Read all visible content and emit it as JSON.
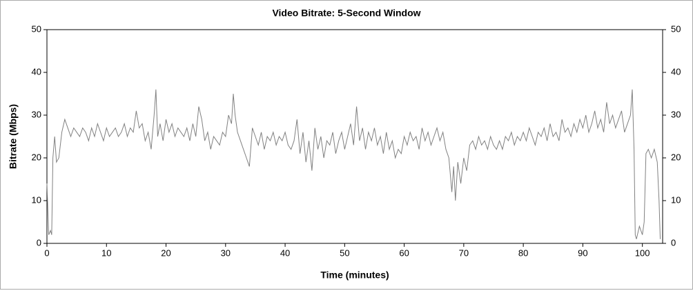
{
  "chart_data": {
    "type": "line",
    "title": "Video Bitrate: 5-Second Window",
    "x_label": "Time (minutes)",
    "y_label": "Bitrate (Mbps)",
    "xlim": [
      0,
      103.4
    ],
    "xticks": [
      0,
      10,
      20,
      30,
      40,
      50,
      60,
      70,
      80,
      90,
      100
    ],
    "ylim": [
      0,
      50
    ],
    "yticks": [
      0,
      10,
      20,
      30,
      40,
      50
    ],
    "y2lim": [
      0,
      50
    ],
    "y2ticks": [
      0,
      10,
      20,
      30,
      40,
      50
    ],
    "series": [
      {
        "name": "Bitrate",
        "color": "#808080",
        "x": [
          0,
          0.3,
          0.6,
          0.8,
          1,
          1.3,
          1.6,
          2,
          2.5,
          3,
          3.5,
          4,
          4.5,
          5,
          5.5,
          6,
          6.5,
          7,
          7.5,
          8,
          8.5,
          9,
          9.5,
          10,
          10.5,
          11,
          11.5,
          12,
          12.5,
          13,
          13.5,
          14,
          14.5,
          15,
          15.5,
          16,
          16.5,
          17,
          17.5,
          18,
          18.3,
          18.6,
          19,
          19.5,
          20,
          20.5,
          21,
          21.5,
          22,
          22.5,
          23,
          23.5,
          24,
          24.5,
          25,
          25.5,
          26,
          26.5,
          27,
          27.5,
          28,
          28.5,
          29,
          29.5,
          30,
          30.5,
          31,
          31.3,
          31.6,
          32,
          32.5,
          33,
          33.5,
          34,
          34.5,
          35,
          35.5,
          36,
          36.5,
          37,
          37.5,
          38,
          38.5,
          39,
          39.5,
          40,
          40.5,
          41,
          41.5,
          42,
          42.5,
          43,
          43.5,
          44,
          44.5,
          45,
          45.5,
          46,
          46.5,
          47,
          47.5,
          48,
          48.5,
          49,
          49.5,
          50,
          50.5,
          51,
          51.5,
          52,
          52.5,
          53,
          53.5,
          54,
          54.5,
          55,
          55.5,
          56,
          56.5,
          57,
          57.5,
          58,
          58.5,
          59,
          59.5,
          60,
          60.5,
          61,
          61.5,
          62,
          62.5,
          63,
          63.5,
          64,
          64.5,
          65,
          65.5,
          66,
          66.5,
          67,
          67.5,
          68,
          68.3,
          68.6,
          69,
          69.5,
          70,
          70.5,
          71,
          71.5,
          72,
          72.5,
          73,
          73.5,
          74,
          74.5,
          75,
          75.5,
          76,
          76.5,
          77,
          77.5,
          78,
          78.5,
          79,
          79.5,
          80,
          80.5,
          81,
          81.5,
          82,
          82.5,
          83,
          83.5,
          84,
          84.5,
          85,
          85.5,
          86,
          86.5,
          87,
          87.5,
          88,
          88.5,
          89,
          89.5,
          90,
          90.5,
          91,
          91.5,
          92,
          92.5,
          93,
          93.5,
          94,
          94.5,
          95,
          95.5,
          96,
          96.5,
          97,
          97.5,
          98,
          98.3,
          98.6,
          98.8,
          99,
          99.5,
          100,
          100.3,
          100.6,
          101,
          101.5,
          102,
          102.5,
          102.8,
          103
        ],
        "values": [
          14,
          2,
          3,
          2,
          20,
          25,
          19,
          20,
          26,
          29,
          27,
          25,
          27,
          26,
          25,
          27,
          26,
          24,
          27,
          25,
          28,
          26,
          24,
          27,
          25,
          26,
          27,
          25,
          26,
          28,
          25,
          27,
          26,
          31,
          27,
          28,
          24,
          26,
          22,
          30,
          36,
          25,
          28,
          24,
          29,
          26,
          28,
          25,
          27,
          26,
          25,
          27,
          24,
          28,
          25,
          32,
          29,
          24,
          26,
          22,
          25,
          24,
          23,
          26,
          25,
          30,
          28,
          35,
          30,
          26,
          24,
          22,
          20,
          18,
          27,
          25,
          23,
          26,
          22,
          25,
          24,
          26,
          23,
          25,
          24,
          26,
          23,
          22,
          24,
          29,
          21,
          26,
          19,
          24,
          17,
          27,
          22,
          25,
          20,
          24,
          23,
          26,
          21,
          24,
          26,
          22,
          25,
          28,
          23,
          32,
          24,
          27,
          22,
          26,
          24,
          27,
          23,
          25,
          21,
          26,
          22,
          24,
          20,
          22,
          21,
          25,
          23,
          26,
          24,
          25,
          22,
          27,
          24,
          26,
          23,
          25,
          27,
          24,
          26,
          22,
          20,
          12,
          18,
          10,
          19,
          14,
          20,
          17,
          23,
          24,
          22,
          25,
          23,
          24,
          22,
          25,
          23,
          22,
          24,
          22,
          25,
          24,
          26,
          23,
          25,
          24,
          26,
          24,
          27,
          25,
          23,
          26,
          25,
          27,
          24,
          28,
          25,
          26,
          24,
          29,
          26,
          27,
          25,
          28,
          26,
          29,
          27,
          30,
          26,
          28,
          31,
          27,
          29,
          26,
          33,
          28,
          30,
          27,
          29,
          31,
          26,
          28,
          30,
          36,
          22,
          2,
          1,
          4,
          2,
          5,
          21,
          22,
          20,
          22,
          19,
          10,
          1
        ]
      }
    ]
  }
}
